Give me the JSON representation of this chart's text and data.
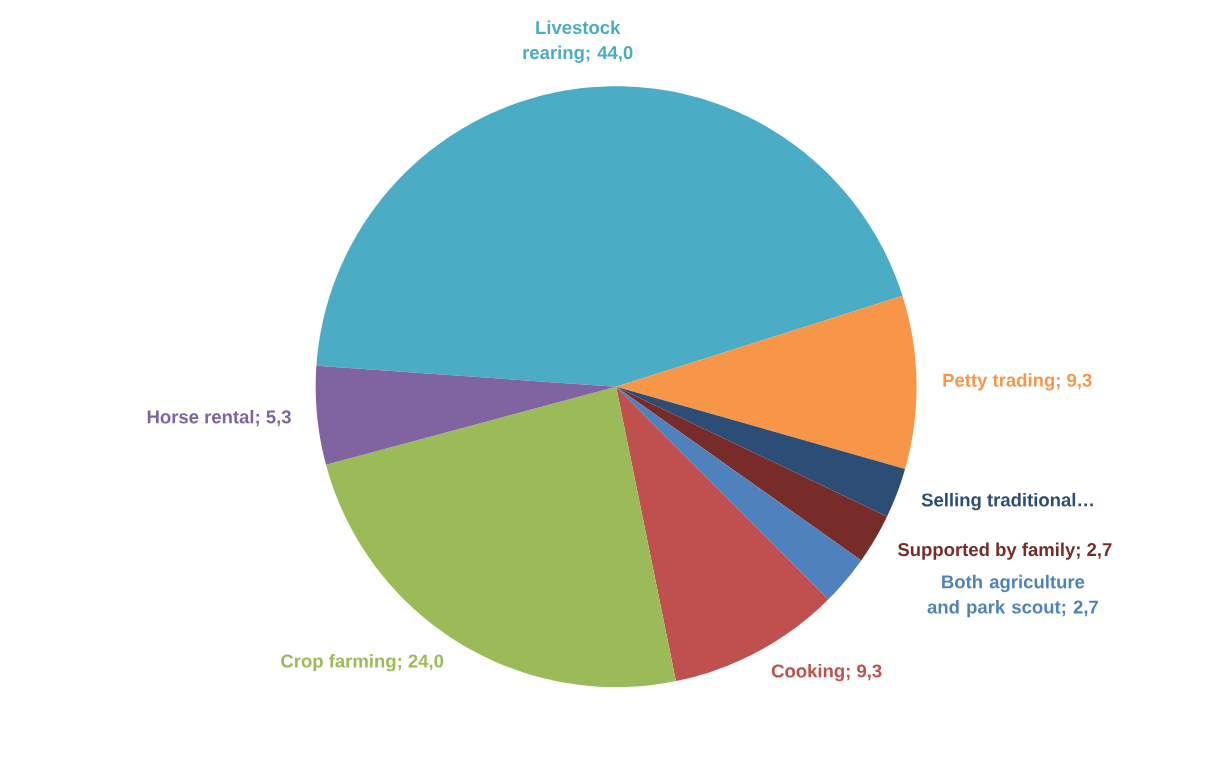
{
  "chart_data": {
    "type": "pie",
    "categories": [
      "Livestock rearing",
      "Petty trading",
      "Selling traditional…",
      "Supported by family",
      "Both agriculture and park scout",
      "Cooking",
      "Crop farming",
      "Horse rental"
    ],
    "values": [
      44.0,
      9.3,
      2.7,
      2.7,
      2.7,
      9.3,
      24.0,
      5.3
    ],
    "value_labels": [
      "; 44,0",
      "; 9,3",
      null,
      "; 2,7",
      "; 2,7",
      "; 9,3",
      "; 24,0",
      "; 5,3"
    ],
    "colors": [
      "#4bacc6",
      "#f79646",
      "#2c4d75",
      "#772c2a",
      "#4f81bd",
      "#c0504d",
      "#9bbb59",
      "#8064a2"
    ]
  }
}
